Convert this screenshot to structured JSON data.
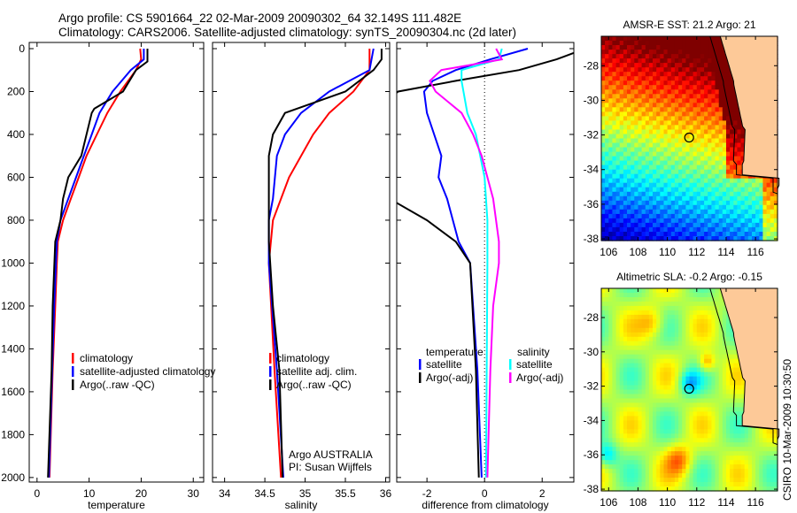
{
  "title_line1": "Argo profile: CS 5901664_22 02-Mar-2009 20090302_64 32.149S 111.482E",
  "title_line2": "Climatology: CARS2006. Satellite-adjusted climatology: synTS_20090304.nc (2d later)",
  "side_label": "CSIRO 10-Mar-2009 10:30:50",
  "credit": [
    "Argo AUSTRALIA",
    "PI: Susan Wijffels"
  ],
  "colors": {
    "red": "#ff0000",
    "blue": "#0000ff",
    "black": "#000000",
    "cyan": "#00ffff",
    "magenta": "#ff00ff",
    "land": "#fdc998"
  },
  "chart_data": [
    {
      "type": "line",
      "xlabel": "temperature",
      "ylabel": "",
      "xlim": [
        -1.5,
        32
      ],
      "ylim": [
        2050,
        0
      ],
      "xticks": [
        0,
        10,
        20,
        30
      ],
      "yticks": [
        0,
        200,
        400,
        600,
        800,
        1000,
        1200,
        1400,
        1600,
        1800,
        2000
      ],
      "legend": [
        "climatology",
        "satellite-adjusted climatology",
        "Argo(..raw -QC)"
      ],
      "series": [
        {
          "name": "climatology",
          "color": "red",
          "depth": [
            0,
            50,
            100,
            200,
            300,
            400,
            500,
            600,
            700,
            800,
            900,
            1000,
            1200,
            1500,
            2000
          ],
          "values": [
            19.8,
            20,
            19,
            16,
            13.5,
            11.5,
            9.5,
            8,
            6.5,
            5,
            4,
            3.8,
            3.5,
            3,
            2.4
          ]
        },
        {
          "name": "satellite-adjusted climatology",
          "color": "blue",
          "depth": [
            0,
            50,
            100,
            200,
            300,
            400,
            500,
            600,
            700,
            800,
            900,
            1200,
            1500,
            2000
          ],
          "values": [
            20.5,
            20.5,
            18,
            14.5,
            12,
            10.5,
            9,
            7.5,
            6,
            4.5,
            3.8,
            3.3,
            2.9,
            2.3
          ]
        },
        {
          "name": "Argo(..raw -QC)",
          "color": "black",
          "depth": [
            0,
            60,
            100,
            200,
            280,
            300,
            400,
            500,
            600,
            700,
            800,
            900,
            1200,
            1500,
            2000
          ],
          "values": [
            21.2,
            21.2,
            19,
            16.5,
            11,
            10.5,
            9.5,
            8.5,
            6,
            5,
            4.5,
            3.5,
            3,
            2.8,
            2.1
          ]
        }
      ]
    },
    {
      "type": "line",
      "xlabel": "salinity",
      "xlim": [
        33.85,
        36.05
      ],
      "ylim": [
        2050,
        0
      ],
      "xticks": [
        34,
        34.5,
        35,
        35.5,
        36
      ],
      "legend": [
        "climatology",
        "satellite adj. clim.",
        "Argo(..raw -QC)"
      ],
      "series": [
        {
          "name": "climatology",
          "color": "red",
          "depth": [
            0,
            100,
            200,
            300,
            400,
            500,
            600,
            800,
            1000,
            1500,
            2000
          ],
          "values": [
            35.8,
            35.8,
            35.6,
            35.3,
            35.1,
            34.95,
            34.8,
            34.6,
            34.55,
            34.62,
            34.7
          ]
        },
        {
          "name": "satellite adj. clim.",
          "color": "blue",
          "depth": [
            0,
            100,
            200,
            300,
            400,
            500,
            700,
            800,
            1000,
            1500,
            2000
          ],
          "values": [
            35.85,
            35.8,
            35.3,
            34.95,
            34.75,
            34.65,
            34.6,
            34.55,
            34.55,
            34.65,
            34.73
          ]
        },
        {
          "name": "Argo(..raw -QC)",
          "color": "black",
          "depth": [
            0,
            50,
            100,
            200,
            300,
            400,
            500,
            700,
            900,
            1200,
            1500,
            2000
          ],
          "values": [
            35.95,
            35.95,
            35.85,
            35.5,
            34.75,
            34.6,
            34.55,
            34.55,
            34.55,
            34.6,
            34.68,
            34.72
          ]
        }
      ]
    },
    {
      "type": "line",
      "xlabel": "difference from climatology",
      "xlim": [
        -3.05,
        3.1
      ],
      "ylim": [
        2050,
        0
      ],
      "xticks": [
        -2,
        0,
        2
      ],
      "legend_titles": [
        "temperature",
        "salinity"
      ],
      "legend": [
        "satellite",
        "Argo(-adj)",
        "satellite",
        "Argo(-adj)"
      ],
      "series": [
        {
          "name": "temperature satellite",
          "color": "blue",
          "depth": [
            0,
            50,
            100,
            150,
            200,
            300,
            500,
            600,
            700,
            800,
            900,
            1000,
            1500,
            2000
          ],
          "values": [
            1.5,
            0.2,
            -1,
            -1.8,
            -2.1,
            -2,
            -1.5,
            -1.6,
            -1.3,
            -1.1,
            -0.9,
            -0.5,
            -0.25,
            -0.1
          ]
        },
        {
          "name": "temperature Argo(-adj)",
          "color": "black",
          "depth": [
            0,
            50,
            100,
            150,
            200,
            300,
            600,
            700,
            800,
            900,
            1000,
            1500,
            2000
          ],
          "values": [
            3.5,
            2.5,
            1.2,
            -1,
            -3,
            -4,
            -4,
            -3.3,
            -2,
            -1,
            -0.5,
            -0.3,
            -0.2
          ]
        },
        {
          "name": "salinity satellite",
          "color": "cyan",
          "depth": [
            0,
            50,
            100,
            150,
            300,
            400,
            600,
            800,
            1000,
            2000
          ],
          "values": [
            0.6,
            0.5,
            -0.8,
            -0.8,
            -0.6,
            -0.3,
            0,
            0.1,
            0.1,
            0.05
          ]
        },
        {
          "name": "salinity Argo(-adj)",
          "color": "magenta",
          "depth": [
            0,
            50,
            100,
            150,
            200,
            300,
            400,
            500,
            700,
            900,
            1000,
            1200,
            1500,
            2000
          ],
          "values": [
            0.4,
            0.6,
            -1.5,
            -1.9,
            -1.7,
            -0.8,
            -0.4,
            -0.1,
            0.3,
            0.5,
            0.5,
            0.3,
            0.2,
            0.1
          ]
        }
      ]
    },
    {
      "type": "heatmap",
      "title": "AMSR-E SST: 21.2 Argo: 21",
      "xlim": [
        105.5,
        117.5
      ],
      "ylim": [
        -38.1,
        -26.3
      ],
      "xticks": [
        106,
        108,
        110,
        112,
        114,
        116
      ],
      "yticks": [
        -28,
        -30,
        -32,
        -34,
        -36,
        -38
      ],
      "marker": {
        "lon": 111.482,
        "lat": -32.149
      }
    },
    {
      "type": "heatmap",
      "title": "Altimetric SLA: -0.2 Argo: -0.15",
      "xlim": [
        105.5,
        117.5
      ],
      "ylim": [
        -38.1,
        -26.3
      ],
      "xticks": [
        106,
        108,
        110,
        112,
        114,
        116
      ],
      "yticks": [
        -28,
        -30,
        -32,
        -34,
        -36,
        -38
      ],
      "marker": {
        "lon": 111.482,
        "lat": -32.149
      }
    }
  ]
}
